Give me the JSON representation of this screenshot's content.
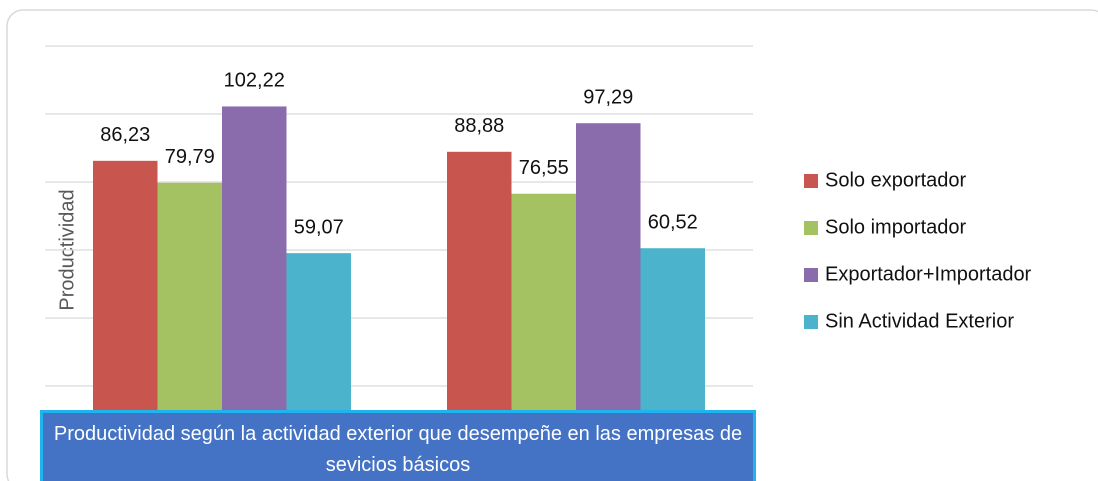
{
  "chart_data": {
    "type": "bar",
    "title": "Productividad según la actividad exterior que desempeñe en las empresas de sevicios básicos",
    "y_label": "Productividad",
    "categories": [
      null,
      null
    ],
    "series": [
      {
        "name": "Solo exportador",
        "color": "#c9554f",
        "values": [
          86.23,
          88.88
        ],
        "value_labels": [
          "86,23",
          "88,88"
        ]
      },
      {
        "name": "Solo importador",
        "color": "#a5c263",
        "values": [
          79.79,
          76.55
        ],
        "value_labels": [
          "79,79",
          "76,55"
        ]
      },
      {
        "name": "Exportador+Importador",
        "color": "#8a6cad",
        "values": [
          102.22,
          97.29
        ],
        "value_labels": [
          "102,22",
          "97,29"
        ]
      },
      {
        "name": "Sin Actividad Exterior",
        "color": "#4bb3cc",
        "values": [
          59.07,
          60.52
        ],
        "value_labels": [
          "59,07",
          "60,52"
        ]
      }
    ],
    "ylim": [
      0,
      120
    ],
    "yticks": [
      0,
      20,
      40,
      60,
      80,
      100,
      120
    ],
    "grid": true,
    "legend": "right"
  }
}
